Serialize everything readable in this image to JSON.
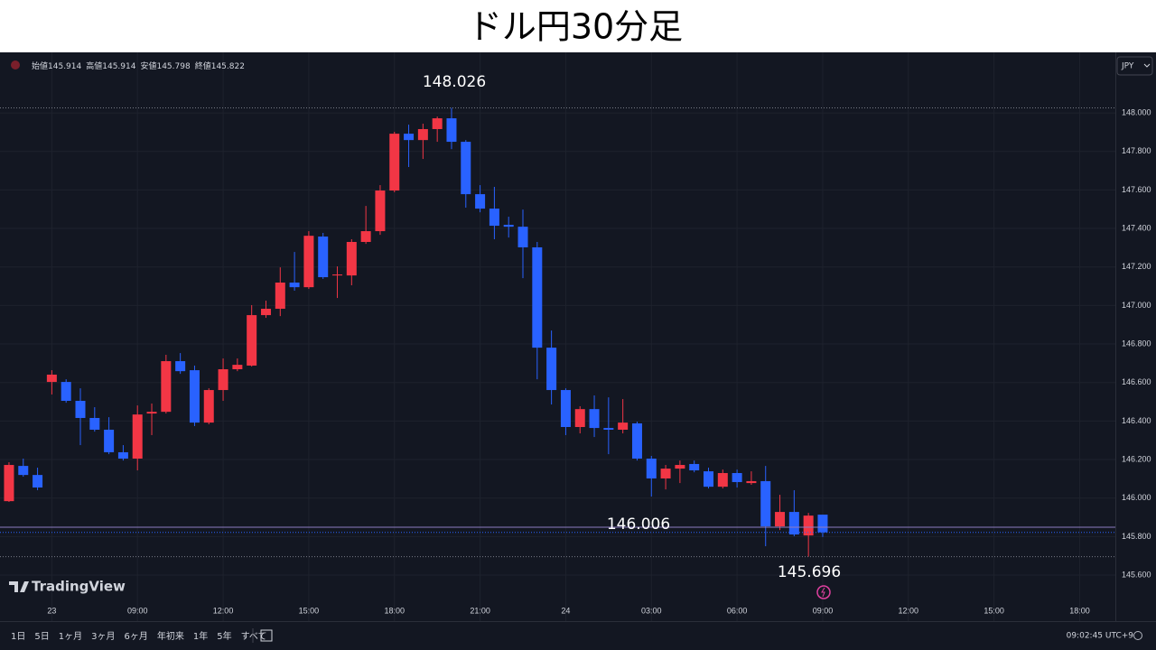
{
  "chart_data": {
    "type": "candlestick",
    "title": "ドル円30分足",
    "header": [
      {
        "label": "始値",
        "value": 145.914
      },
      {
        "label": "高値",
        "value": 145.914
      },
      {
        "label": "安値",
        "value": 145.798
      },
      {
        "label": "終値",
        "value": 145.822
      }
    ],
    "currency": "JPY",
    "up_color": "#f23645",
    "down_color": "#2962ff",
    "open": [
      145.984,
      146.167,
      146.12,
      146.603,
      146.603,
      146.505,
      146.416,
      146.355,
      146.238,
      146.205,
      146.439,
      146.448,
      146.711,
      146.664,
      146.392,
      146.561,
      146.669,
      146.688,
      146.95,
      146.983,
      147.119,
      147.095,
      147.358,
      147.156,
      147.156,
      147.33,
      147.386,
      147.597,
      147.892,
      147.859,
      147.916,
      147.972,
      147.85,
      147.578,
      147.503,
      147.419,
      147.409,
      147.302,
      146.781,
      146.561,
      146.369,
      146.462,
      146.364,
      146.355,
      146.388,
      146.205,
      146.102,
      146.153,
      146.177,
      146.139,
      146.059,
      146.13,
      146.078,
      146.088,
      145.853,
      145.928,
      145.806,
      145.914
    ],
    "high": [
      146.186,
      146.205,
      146.158,
      146.664,
      146.617,
      146.57,
      146.472,
      146.42,
      146.275,
      146.481,
      146.491,
      146.744,
      146.753,
      146.688,
      146.57,
      146.725,
      146.725,
      147.002,
      147.025,
      147.198,
      147.278,
      147.386,
      147.377,
      147.203,
      147.344,
      147.517,
      147.625,
      147.902,
      147.939,
      147.944,
      147.981,
      148.026,
      147.859,
      147.625,
      147.616,
      147.461,
      147.498,
      147.33,
      146.87,
      146.57,
      146.477,
      146.533,
      146.523,
      146.514,
      146.397,
      146.219,
      146.172,
      146.195,
      146.195,
      146.158,
      146.148,
      146.148,
      146.139,
      146.167,
      146.017,
      146.041,
      145.923,
      145.914
    ],
    "low": [
      145.98,
      146.111,
      146.041,
      146.538,
      146.495,
      146.275,
      146.345,
      146.228,
      146.195,
      146.144,
      146.327,
      146.439,
      146.645,
      146.374,
      146.383,
      146.505,
      146.659,
      146.683,
      146.936,
      146.945,
      147.077,
      147.086,
      147.138,
      147.039,
      147.105,
      147.32,
      147.367,
      147.588,
      147.719,
      147.761,
      147.85,
      147.812,
      147.508,
      147.484,
      147.344,
      147.353,
      147.142,
      146.617,
      146.486,
      146.327,
      146.336,
      146.317,
      146.228,
      146.336,
      146.195,
      146.008,
      146.045,
      146.078,
      146.134,
      146.05,
      146.05,
      146.055,
      146.069,
      145.75,
      145.834,
      145.802,
      145.696,
      145.798
    ],
    "close": [
      146.172,
      146.12,
      146.055,
      146.641,
      146.505,
      146.416,
      146.355,
      146.238,
      146.205,
      146.434,
      146.448,
      146.711,
      146.659,
      146.392,
      146.561,
      146.669,
      146.692,
      146.95,
      146.983,
      147.119,
      147.095,
      147.362,
      147.147,
      147.161,
      147.33,
      147.386,
      147.597,
      147.892,
      147.859,
      147.916,
      147.972,
      147.85,
      147.578,
      147.503,
      147.414,
      147.409,
      147.302,
      146.781,
      146.561,
      146.369,
      146.462,
      146.364,
      146.355,
      146.392,
      146.205,
      146.102,
      146.153,
      146.172,
      146.144,
      146.059,
      146.13,
      146.083,
      146.088,
      145.853,
      145.928,
      145.811,
      145.909,
      145.822
    ],
    "ylim": [
      145.469,
      148.305
    ],
    "yticks": [
      {
        "value": 145.6,
        "label": "145.600"
      },
      {
        "value": 145.8,
        "label": "145.800"
      },
      {
        "value": 146,
        "label": "146.000"
      },
      {
        "value": 146.2,
        "label": "146.200"
      },
      {
        "value": 146.4,
        "label": "146.400"
      },
      {
        "value": 146.6,
        "label": "146.600"
      },
      {
        "value": 146.8,
        "label": "146.800"
      },
      {
        "value": 147,
        "label": "147.000"
      },
      {
        "value": 147.2,
        "label": "147.200"
      },
      {
        "value": 147.4,
        "label": "147.400"
      },
      {
        "value": 147.6,
        "label": "147.600"
      },
      {
        "value": 147.8,
        "label": "147.800"
      },
      {
        "value": 148,
        "label": "148.000"
      }
    ],
    "xlim": [
      -0.63,
      77.5
    ],
    "xticks": [
      {
        "value": 3,
        "label": "23"
      },
      {
        "value": 9,
        "label": "09:00"
      },
      {
        "value": 15,
        "label": "12:00"
      },
      {
        "value": 21,
        "label": "15:00"
      },
      {
        "value": 27,
        "label": "18:00"
      },
      {
        "value": 33,
        "label": "21:00"
      },
      {
        "value": 39,
        "label": "24"
      },
      {
        "value": 45,
        "label": "03:00"
      },
      {
        "value": 51,
        "label": "06:00"
      },
      {
        "value": 57,
        "label": "09:00"
      },
      {
        "value": 63,
        "label": "12:00"
      },
      {
        "value": 69,
        "label": "15:00"
      },
      {
        "value": 75,
        "label": "18:00"
      }
    ],
    "grid": true,
    "annotations": [
      148.026,
      146.006,
      145.696
    ],
    "logo": "TradingView",
    "ranges": [
      "1日",
      "5日",
      "1ヶ月",
      "3ヶ月",
      "6ヶ月",
      "年初来",
      "1年",
      "5年",
      "すべて"
    ],
    "clock": "09:02:45 UTC+9"
  }
}
